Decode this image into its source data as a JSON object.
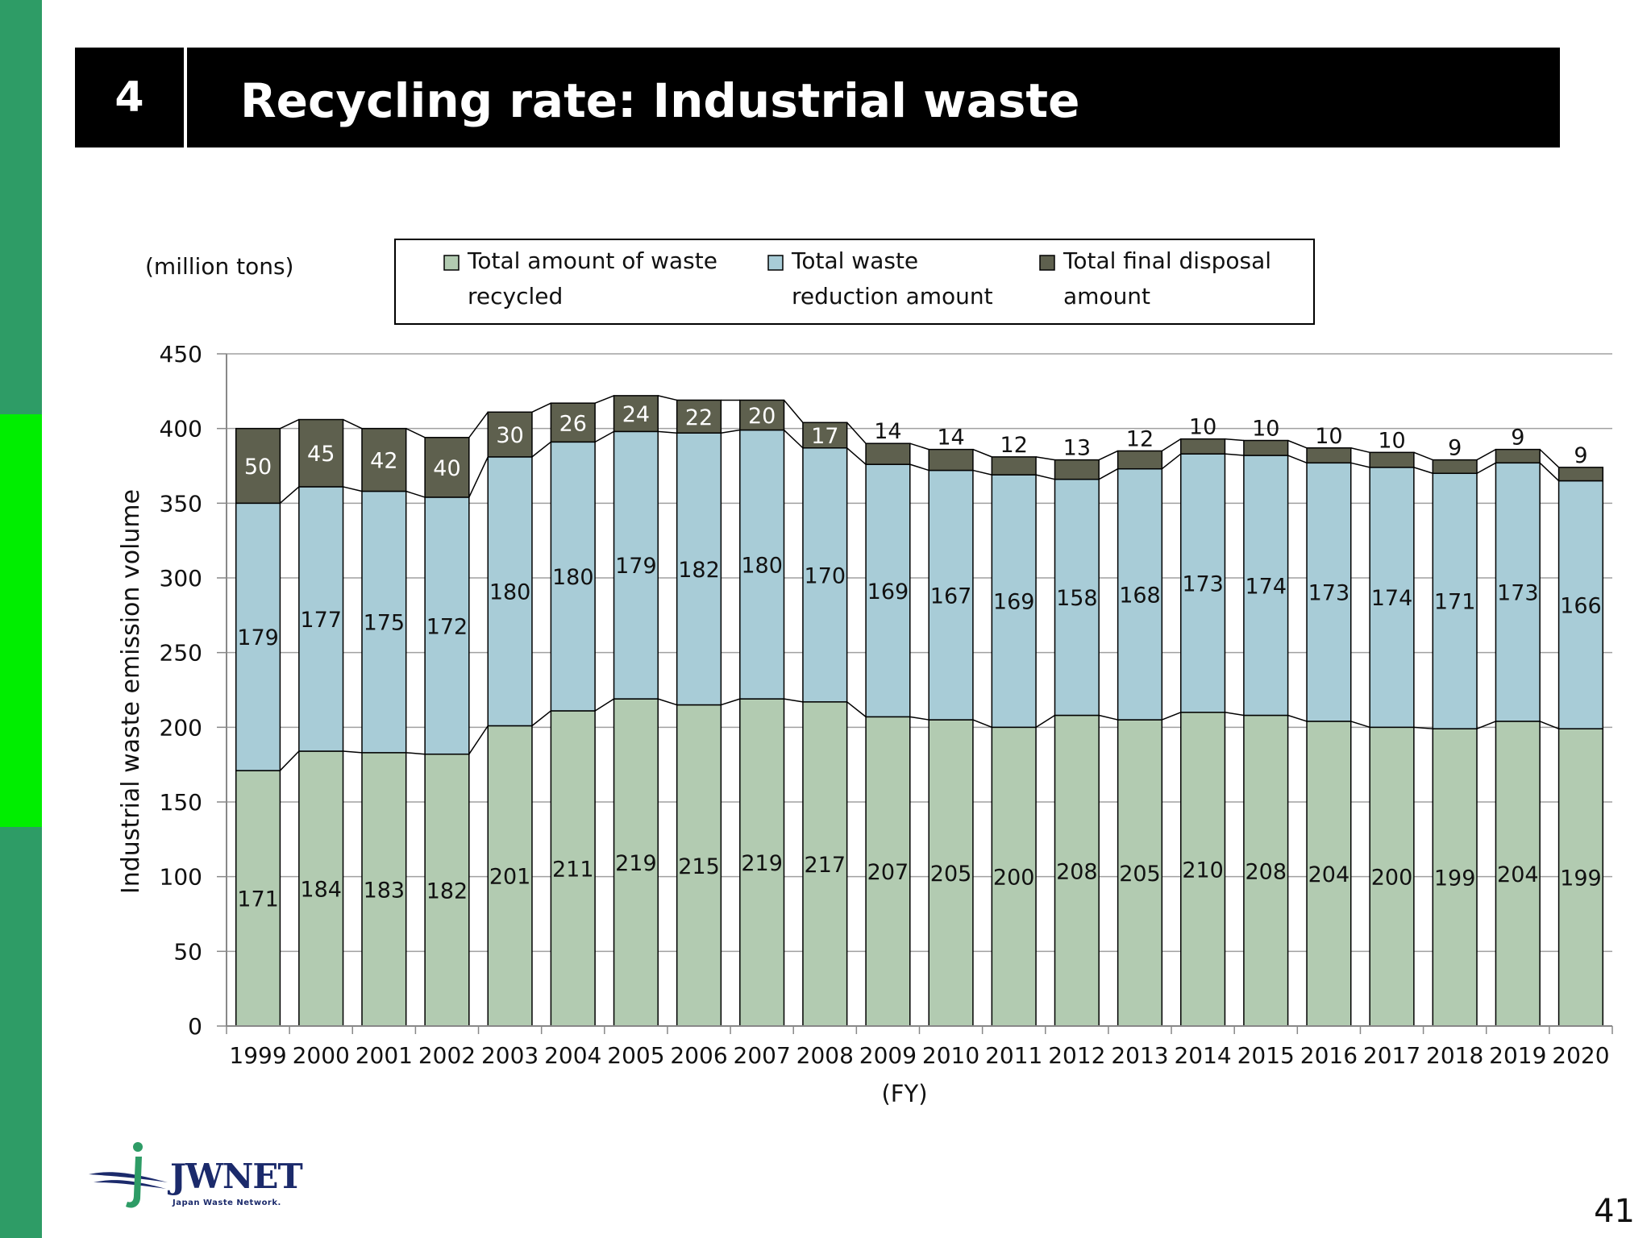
{
  "slide": {
    "section_number": "4",
    "title": "Recycling rate: Industrial waste",
    "page_number": "41",
    "logo_text": "JWNET",
    "logo_tagline": "Japan Waste Network."
  },
  "colors": {
    "recycled": "#b2cbb1",
    "reduction": "#a8ccd7",
    "final_disposal": "#5e604e",
    "side_strip": "#2e9c66",
    "side_accent": "#00ee00"
  },
  "chart_data": {
    "type": "bar",
    "stacked": true,
    "unit_label": "(million tons)",
    "ylabel": "Industrial waste emission volume",
    "xlabel": "(FY)",
    "ylim": [
      0,
      450
    ],
    "yticks": [
      0,
      50,
      100,
      150,
      200,
      250,
      300,
      350,
      400,
      450
    ],
    "grid": true,
    "legend_position": "top",
    "categories": [
      "1999",
      "2000",
      "2001",
      "2002",
      "2003",
      "2004",
      "2005",
      "2006",
      "2007",
      "2008",
      "2009",
      "2010",
      "2011",
      "2012",
      "2013",
      "2014",
      "2015",
      "2016",
      "2017",
      "2018",
      "2019",
      "2020"
    ],
    "series": [
      {
        "name": "Total amount of waste recycled",
        "legend_lines": [
          "Total amount of waste",
          "recycled"
        ],
        "values": [
          171,
          184,
          183,
          182,
          201,
          211,
          219,
          215,
          219,
          217,
          207,
          205,
          200,
          208,
          205,
          210,
          208,
          204,
          200,
          199,
          204,
          199
        ]
      },
      {
        "name": "Total waste reduction amount",
        "legend_lines": [
          "Total waste",
          "reduction amount"
        ],
        "values": [
          179,
          177,
          175,
          172,
          180,
          180,
          179,
          182,
          180,
          170,
          169,
          167,
          169,
          158,
          168,
          173,
          174,
          173,
          174,
          171,
          173,
          166
        ]
      },
      {
        "name": "Total final disposal amount",
        "legend_lines": [
          "Total final disposal",
          "amount"
        ],
        "values": [
          50,
          45,
          42,
          40,
          30,
          26,
          24,
          22,
          20,
          17,
          14,
          14,
          12,
          13,
          12,
          10,
          10,
          10,
          10,
          9,
          9,
          9
        ]
      }
    ]
  }
}
